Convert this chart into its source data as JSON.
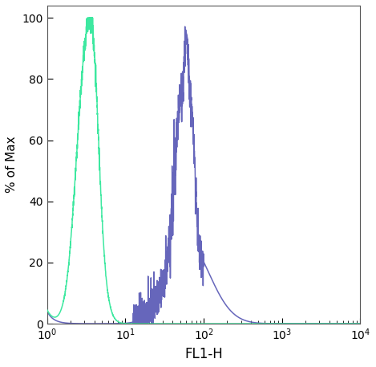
{
  "xlabel": "FL1-H",
  "ylabel": "% of Max",
  "xlim_log": [
    0,
    4
  ],
  "ylim": [
    0,
    104
  ],
  "yticks": [
    0,
    20,
    40,
    60,
    80,
    100
  ],
  "green_color": "#3de8a0",
  "blue_color": "#6666bb",
  "background_color": "#ffffff",
  "figsize": [
    4.69,
    4.57
  ],
  "dpi": 100
}
